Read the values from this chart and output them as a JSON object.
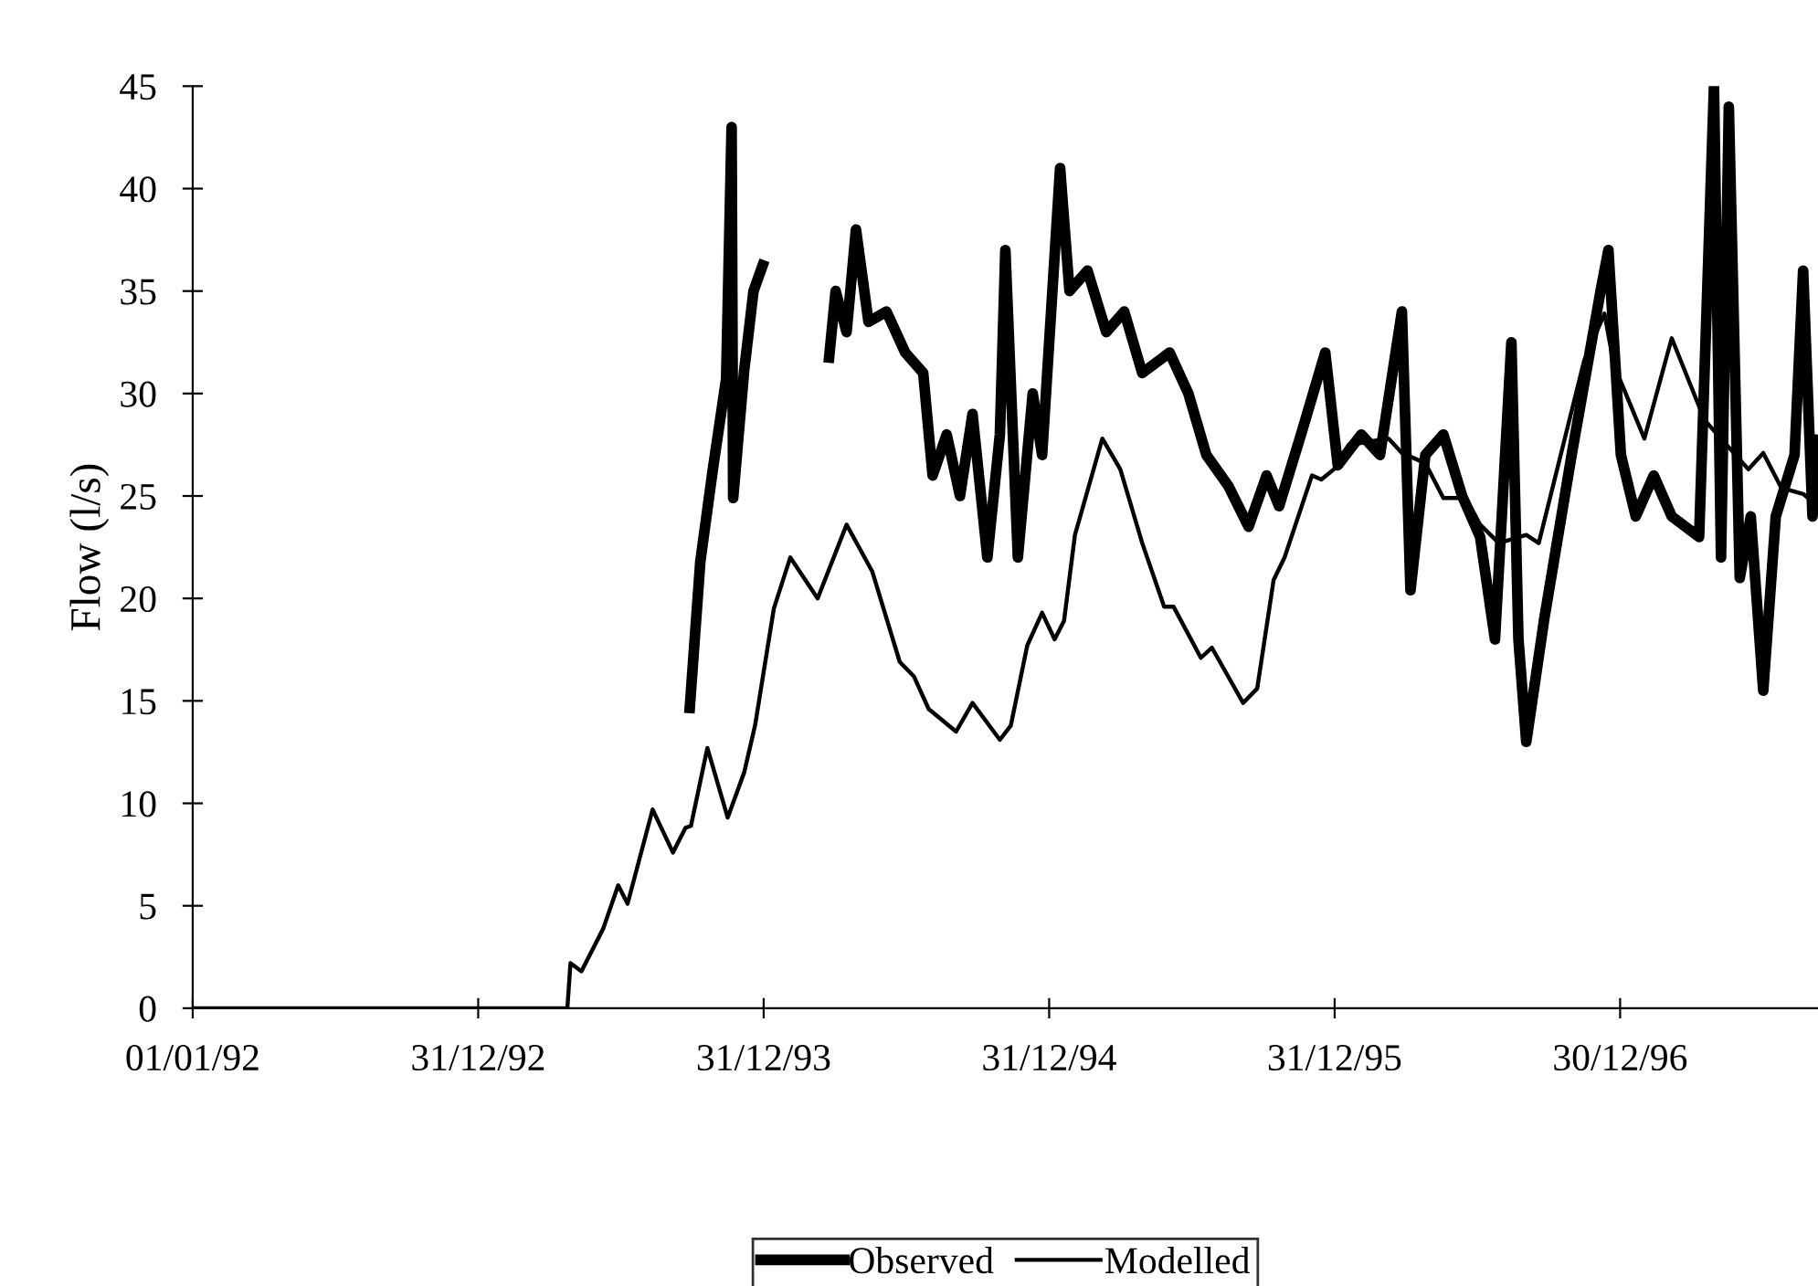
{
  "chart_data": {
    "type": "line",
    "ylabel": "Flow (l/s)",
    "xlim": [
      "1992-01-01",
      "1997-09-09"
    ],
    "xticks": [
      {
        "value": "1992-01-01",
        "label": "01/01/92"
      },
      {
        "value": "1992-12-31",
        "label": "31/12/92"
      },
      {
        "value": "1993-12-31",
        "label": "31/12/93"
      },
      {
        "value": "1994-12-31",
        "label": "31/12/94"
      },
      {
        "value": "1995-12-31",
        "label": "31/12/95"
      },
      {
        "value": "1996-12-30",
        "label": "30/12/96"
      }
    ],
    "ylim": [
      0,
      45
    ],
    "yticks": [
      0,
      5,
      10,
      15,
      20,
      25,
      30,
      35,
      40,
      45
    ],
    "grid": false,
    "legend": "bottom",
    "line_style": "solid",
    "marker": "none",
    "series": [
      {
        "name": "Observed",
        "color": "#000000",
        "x": [
          "1993-09-27",
          "1993-10-11",
          "1993-10-27",
          "1993-11-13",
          "1993-11-20",
          "1993-11-22",
          "1993-12-06",
          "1993-12-18",
          "1994-01-01",
          "1994-02-03",
          "1994-03-24",
          "1994-04-02",
          "1994-04-16",
          "1994-04-28",
          "1994-05-14",
          "1994-06-06",
          "1994-06-30",
          "1994-07-23",
          "1994-08-04",
          "1994-08-22",
          "1994-09-08",
          "1994-09-24",
          "1994-10-13",
          "1994-10-29",
          "1994-11-05",
          "1994-11-21",
          "1994-12-10",
          "1994-12-22",
          "1995-01-14",
          "1995-01-26",
          "1995-02-18",
          "1995-03-14",
          "1995-04-06",
          "1995-04-29",
          "1995-06-03",
          "1995-06-27",
          "1995-07-20",
          "1995-08-17",
          "1995-09-12",
          "1995-10-05",
          "1995-10-21",
          "1995-11-18",
          "1995-12-19",
          "1996-01-04",
          "1996-02-03",
          "1996-02-27",
          "1996-03-26",
          "1996-04-06",
          "1996-04-25",
          "1996-05-18",
          "1996-06-11",
          "1996-07-04",
          "1996-07-23",
          "1996-08-13",
          "1996-08-22",
          "1996-09-01",
          "1996-09-24",
          "1996-10-29",
          "1996-12-05",
          "1996-12-15",
          "1996-12-31",
          "1997-01-19",
          "1997-02-11",
          "1997-03-06",
          "1997-04-10",
          "1997-04-29",
          "1997-05-08",
          "1997-05-18",
          "1997-06-01",
          "1997-06-15",
          "1997-07-01",
          "1997-07-17",
          "1997-08-10",
          "1997-08-21",
          "1997-09-02",
          "1997-09-09"
        ],
        "values": [
          14.4,
          21.8,
          26.3,
          30.7,
          43,
          24.9,
          31.1,
          35,
          36.5,
          null,
          31.5,
          35,
          33,
          38,
          33.5,
          34,
          32,
          31,
          26,
          28,
          25,
          29,
          22,
          28,
          37,
          22,
          30,
          27,
          41,
          35,
          36,
          33,
          34,
          31,
          32,
          30,
          27,
          25.5,
          23.5,
          26,
          24.5,
          28,
          32,
          26.5,
          28,
          27,
          34,
          20.4,
          27,
          28,
          25,
          23,
          18,
          32.5,
          18,
          13,
          19,
          27,
          35,
          37,
          27,
          24,
          26,
          24,
          23,
          45,
          22,
          44,
          21,
          24,
          15.5,
          24,
          27,
          36,
          24,
          28
        ]
      },
      {
        "name": "Modelled",
        "color": "#000000",
        "x": [
          "1992-01-01",
          "1993-04-24",
          "1993-04-28",
          "1993-05-12",
          "1993-06-09",
          "1993-06-28",
          "1993-07-10",
          "1993-08-11",
          "1993-09-06",
          "1993-09-22",
          "1993-09-29",
          "1993-10-20",
          "1993-11-15",
          "1993-12-06",
          "1993-12-20",
          "1994-01-13",
          "1994-02-03",
          "1994-03-10",
          "1994-04-16",
          "1994-05-19",
          "1994-06-23",
          "1994-07-11",
          "1994-07-30",
          "1994-09-03",
          "1994-09-24",
          "1994-10-29",
          "1994-11-12",
          "1994-12-03",
          "1994-12-22",
          "1995-01-07",
          "1995-01-19",
          "1995-02-02",
          "1995-03-09",
          "1995-04-01",
          "1995-04-29",
          "1995-05-27",
          "1995-06-08",
          "1995-07-13",
          "1995-07-27",
          "1995-09-05",
          "1995-09-23",
          "1995-10-14",
          "1995-10-28",
          "1995-12-02",
          "1995-12-14",
          "1995-12-30",
          "1996-01-18",
          "1996-03-09",
          "1996-03-26",
          "1996-04-25",
          "1996-05-18",
          "1996-06-16",
          "1996-07-04",
          "1996-07-28",
          "1996-09-01",
          "1996-09-17",
          "1996-11-14",
          "1996-12-10",
          "1996-12-22",
          "1997-01-30",
          "1997-03-06",
          "1997-04-17",
          "1997-06-12",
          "1997-07-01",
          "1997-07-24",
          "1997-08-21",
          "1997-09-09"
        ],
        "values": [
          0,
          0,
          2.2,
          1.8,
          3.9,
          6.0,
          5.1,
          9.7,
          7.6,
          8.8,
          8.9,
          12.7,
          9.3,
          11.5,
          13.8,
          19.5,
          22.0,
          20.0,
          23.6,
          21.3,
          16.9,
          16.2,
          14.6,
          13.5,
          14.9,
          13.1,
          13.8,
          17.7,
          19.3,
          18.0,
          18.9,
          23.1,
          27.8,
          26.3,
          22.7,
          19.6,
          19.6,
          17.1,
          17.6,
          14.9,
          15.6,
          20.9,
          22.0,
          26.0,
          25.8,
          26.3,
          27.5,
          27.8,
          27.1,
          26.6,
          24.9,
          24.9,
          23.6,
          22.7,
          23.1,
          22.7,
          31.6,
          33.9,
          31.4,
          27.8,
          32.7,
          28.7,
          26.3,
          27.1,
          25.4,
          25.1,
          24.5
        ]
      }
    ]
  }
}
